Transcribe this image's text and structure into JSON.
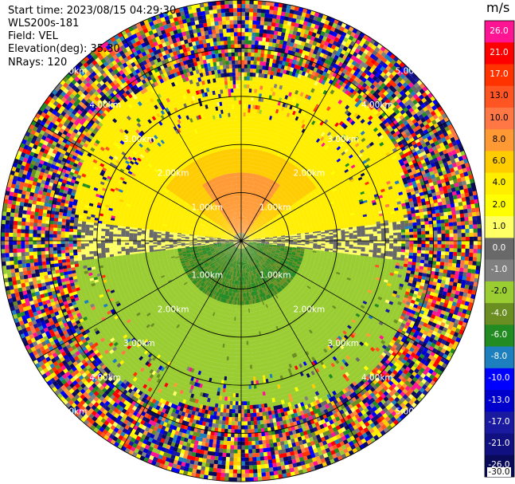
{
  "header": {
    "start_time": "Start time: 2023/08/15 04:29:30",
    "station": "WLS200s-181",
    "field": "Field: VEL",
    "elevation": "Elevation(deg): 35.30",
    "nrays": "NRays: 120"
  },
  "chart_data": {
    "type": "heatmap",
    "projection": "polar PPI",
    "field": "VEL",
    "unit": "m/s",
    "nrays": 120,
    "elevation_deg": 35.3,
    "range_rings_km": [
      1.0,
      2.0,
      3.0,
      4.0,
      5.0
    ],
    "range_ring_labels": [
      "1.00km",
      "2.00km",
      "3.00km",
      "4.00km",
      "5.00km"
    ],
    "max_range_km": 5.0,
    "spoke_angles_deg": [
      0,
      30,
      60,
      90,
      120,
      150,
      180,
      210,
      240,
      270,
      300,
      330
    ],
    "colorbar": {
      "title": "m/s",
      "ticks": [
        "26.0",
        "21.0",
        "17.0",
        "13.0",
        "10.0",
        "8.0",
        "6.0",
        "4.0",
        "2.0",
        "1.0",
        "0.0",
        "-1.0",
        "-2.0",
        "-4.0",
        "-6.0",
        "-8.0",
        "-10.0",
        "-13.0",
        "-17.0",
        "-21.0",
        "-26.0",
        "-30.0"
      ],
      "colors": [
        "#ff1493",
        "#ff0000",
        "#ff3300",
        "#ff5522",
        "#ff7744",
        "#ff9933",
        "#ffcc00",
        "#ffee00",
        "#ffff00",
        "#ffff66",
        "#696969",
        "#808080",
        "#9acd32",
        "#6b8e23",
        "#228b22",
        "#1e7fbf",
        "#0000ff",
        "#0000cd",
        "#1a1aa0",
        "#101080",
        "#0a0a5a"
      ]
    },
    "regions_velocity_ms": {
      "north_inner": 6.0,
      "north_core": 8.0,
      "north_mid": 2.0,
      "east_west_band": 0.0,
      "south_inner": -6.0,
      "south_mid": -4.0,
      "outer_noise": "mixed"
    }
  }
}
